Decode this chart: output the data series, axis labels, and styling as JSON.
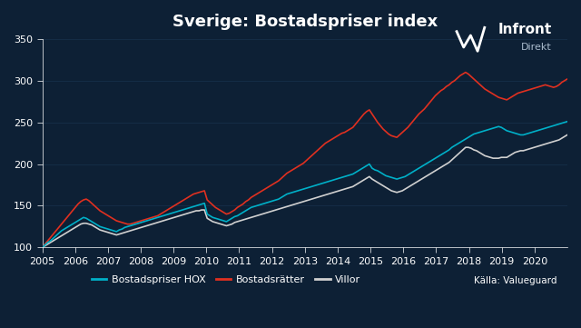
{
  "title": "Sverige: Bostadspriser index",
  "background_color": "#0d2035",
  "text_color": "#ffffff",
  "grid_color": "#1a3a55",
  "xlabel": "",
  "ylabel": "",
  "ylim": [
    100,
    350
  ],
  "yticks": [
    100,
    150,
    200,
    250,
    300,
    350
  ],
  "xlim": [
    2005,
    2021.0
  ],
  "xticks": [
    2005,
    2006,
    2007,
    2008,
    2009,
    2010,
    2011,
    2012,
    2013,
    2014,
    2015,
    2016,
    2017,
    2018,
    2019,
    2020
  ],
  "legend_labels": [
    "Bostadspriser HOX",
    "Bostadsrätter",
    "Villor"
  ],
  "legend_colors": [
    "#00b0c8",
    "#e03020",
    "#d0d0d0"
  ],
  "source_text": "Källa: Valueguard",
  "line_width": 1.2,
  "hox": [
    100,
    103,
    106,
    108,
    111,
    114,
    117,
    120,
    122,
    124,
    126,
    128,
    130,
    132,
    134,
    136,
    135,
    133,
    131,
    129,
    127,
    125,
    124,
    123,
    122,
    121,
    120,
    119,
    121,
    122,
    124,
    125,
    126,
    127,
    128,
    129,
    130,
    131,
    132,
    133,
    134,
    135,
    136,
    137,
    138,
    139,
    140,
    141,
    142,
    143,
    144,
    145,
    146,
    147,
    148,
    149,
    150,
    151,
    152,
    153,
    140,
    138,
    136,
    135,
    134,
    133,
    132,
    131,
    133,
    135,
    137,
    138,
    140,
    142,
    144,
    146,
    148,
    149,
    150,
    151,
    152,
    153,
    154,
    155,
    156,
    157,
    158,
    160,
    162,
    164,
    165,
    166,
    167,
    168,
    169,
    170,
    171,
    172,
    173,
    174,
    175,
    176,
    177,
    178,
    179,
    180,
    181,
    182,
    183,
    184,
    185,
    186,
    187,
    188,
    190,
    192,
    194,
    196,
    198,
    200,
    195,
    193,
    192,
    190,
    188,
    186,
    185,
    184,
    183,
    182,
    183,
    184,
    185,
    187,
    189,
    191,
    193,
    195,
    197,
    199,
    201,
    203,
    205,
    207,
    209,
    211,
    213,
    215,
    217,
    220,
    222,
    224,
    226,
    228,
    230,
    232,
    234,
    236,
    237,
    238,
    239,
    240,
    241,
    242,
    243,
    244,
    245,
    244,
    242,
    240,
    239,
    238,
    237,
    236,
    235,
    235,
    236,
    237,
    238,
    239,
    240,
    241,
    242,
    243,
    244,
    245,
    246,
    247,
    248,
    249,
    250,
    251,
    252,
    253,
    254,
    255,
    256,
    257,
    258,
    259
  ],
  "bostadsratter": [
    100,
    104,
    108,
    112,
    116,
    120,
    124,
    128,
    132,
    136,
    140,
    144,
    148,
    152,
    155,
    157,
    158,
    156,
    153,
    150,
    147,
    144,
    142,
    140,
    138,
    136,
    134,
    132,
    131,
    130,
    129,
    128,
    128,
    129,
    130,
    131,
    132,
    133,
    134,
    135,
    136,
    137,
    138,
    140,
    142,
    144,
    146,
    148,
    150,
    152,
    154,
    156,
    158,
    160,
    162,
    164,
    165,
    166,
    167,
    168,
    157,
    154,
    151,
    148,
    146,
    144,
    142,
    140,
    141,
    143,
    145,
    148,
    150,
    152,
    155,
    157,
    160,
    162,
    164,
    166,
    168,
    170,
    172,
    174,
    176,
    178,
    180,
    183,
    186,
    189,
    191,
    193,
    195,
    197,
    199,
    201,
    204,
    207,
    210,
    213,
    216,
    219,
    222,
    225,
    227,
    229,
    231,
    233,
    235,
    237,
    238,
    240,
    242,
    244,
    248,
    252,
    256,
    260,
    263,
    265,
    260,
    255,
    250,
    246,
    242,
    239,
    236,
    234,
    233,
    232,
    235,
    238,
    241,
    244,
    248,
    252,
    256,
    260,
    263,
    266,
    270,
    274,
    278,
    282,
    285,
    288,
    290,
    293,
    295,
    298,
    300,
    303,
    306,
    308,
    310,
    308,
    305,
    302,
    299,
    296,
    293,
    290,
    288,
    286,
    284,
    282,
    280,
    279,
    278,
    277,
    279,
    281,
    283,
    285,
    286,
    287,
    288,
    289,
    290,
    291,
    292,
    293,
    294,
    295,
    294,
    293,
    292,
    293,
    295,
    298,
    300,
    302,
    303,
    304,
    305,
    306,
    307,
    308,
    308,
    308
  ],
  "villor": [
    100,
    102,
    104,
    106,
    108,
    110,
    112,
    114,
    116,
    118,
    120,
    122,
    124,
    126,
    128,
    129,
    129,
    128,
    127,
    125,
    123,
    121,
    120,
    119,
    118,
    117,
    116,
    115,
    116,
    117,
    118,
    119,
    120,
    121,
    122,
    123,
    124,
    125,
    126,
    127,
    128,
    129,
    130,
    131,
    132,
    133,
    134,
    135,
    136,
    137,
    138,
    139,
    140,
    141,
    142,
    143,
    144,
    144,
    145,
    145,
    135,
    133,
    131,
    130,
    129,
    128,
    127,
    126,
    127,
    128,
    130,
    131,
    132,
    133,
    134,
    135,
    136,
    137,
    138,
    139,
    140,
    141,
    142,
    143,
    144,
    145,
    146,
    147,
    148,
    149,
    150,
    151,
    152,
    153,
    154,
    155,
    156,
    157,
    158,
    159,
    160,
    161,
    162,
    163,
    164,
    165,
    166,
    167,
    168,
    169,
    170,
    171,
    172,
    173,
    175,
    177,
    179,
    181,
    183,
    185,
    182,
    180,
    178,
    176,
    174,
    172,
    170,
    168,
    167,
    166,
    167,
    168,
    170,
    172,
    174,
    176,
    178,
    180,
    182,
    184,
    186,
    188,
    190,
    192,
    194,
    196,
    198,
    200,
    202,
    205,
    208,
    211,
    214,
    217,
    220,
    220,
    219,
    217,
    216,
    214,
    212,
    210,
    209,
    208,
    207,
    207,
    207,
    208,
    208,
    208,
    210,
    212,
    214,
    215,
    216,
    216,
    217,
    218,
    219,
    220,
    221,
    222,
    223,
    224,
    225,
    226,
    227,
    228,
    229,
    231,
    233,
    235,
    237,
    239,
    241,
    243,
    245,
    246,
    248,
    249
  ],
  "n_points": 200
}
